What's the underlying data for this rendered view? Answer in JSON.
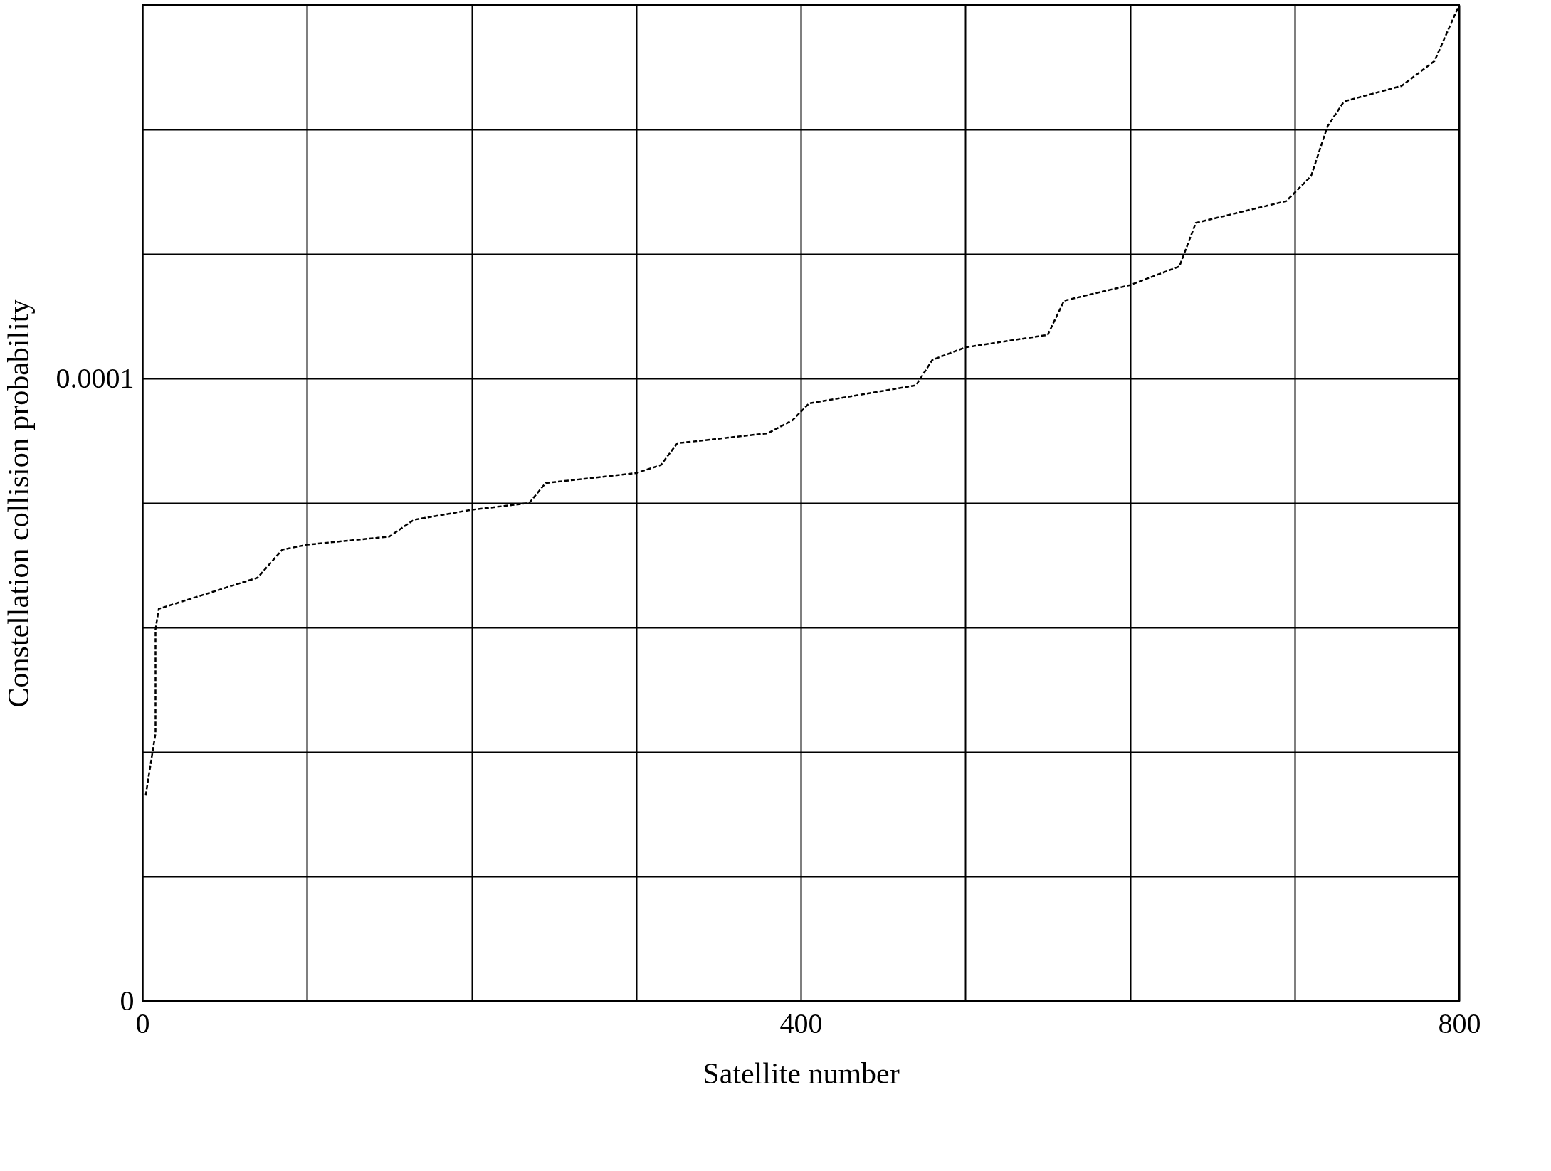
{
  "chart_data": {
    "type": "line",
    "xlabel": "Satellite number",
    "ylabel": "Constellation collision probability",
    "x": [
      2,
      5,
      8,
      8,
      10,
      70,
      85,
      100,
      150,
      165,
      200,
      235,
      245,
      300,
      315,
      325,
      380,
      395,
      405,
      470,
      480,
      500,
      550,
      560,
      600,
      630,
      640,
      695,
      710,
      720,
      730,
      765,
      785,
      800
    ],
    "series": [
      {
        "color": "#000000",
        "values": [
          3.3e-05,
          3.8e-05,
          4.3e-05,
          5.97e-05,
          6.3e-05,
          6.8e-05,
          7.25e-05,
          7.33e-05,
          7.46e-05,
          7.73e-05,
          7.89e-05,
          8e-05,
          8.32e-05,
          8.48e-05,
          8.61e-05,
          8.96e-05,
          9.12e-05,
          9.33e-05,
          9.6e-05,
          9.89e-05,
          0.000103,
          0.000105,
          0.000107,
          0.0001125,
          0.000115,
          0.000118,
          0.000125,
          0.0001285,
          0.0001325,
          0.0001405,
          0.0001445,
          0.000147,
          0.000151,
          0.00016
        ]
      }
    ],
    "xlim": [
      0,
      800
    ],
    "ylim": [
      0,
      0.00016
    ],
    "xticks": [
      0,
      {
        "value": 100,
        "label": null
      },
      {
        "value": 200,
        "label": null
      },
      {
        "value": 300,
        "label": null
      },
      400,
      {
        "value": 500,
        "label": null
      },
      {
        "value": 600,
        "label": null
      },
      {
        "value": 700,
        "label": null
      },
      800
    ],
    "yticks": [
      0,
      {
        "value": 2e-05,
        "label": null
      },
      {
        "value": 4e-05,
        "label": null
      },
      {
        "value": 6e-05,
        "label": null
      },
      {
        "value": 8e-05,
        "label": null
      },
      {
        "value": 0.0001,
        "label": "0.0001"
      },
      {
        "value": 0.00012,
        "label": null
      },
      {
        "value": 0.00014,
        "label": null
      },
      {
        "value": 0.00016,
        "label": null
      }
    ],
    "grid": true,
    "line_style": "dashed",
    "marker": "none"
  }
}
